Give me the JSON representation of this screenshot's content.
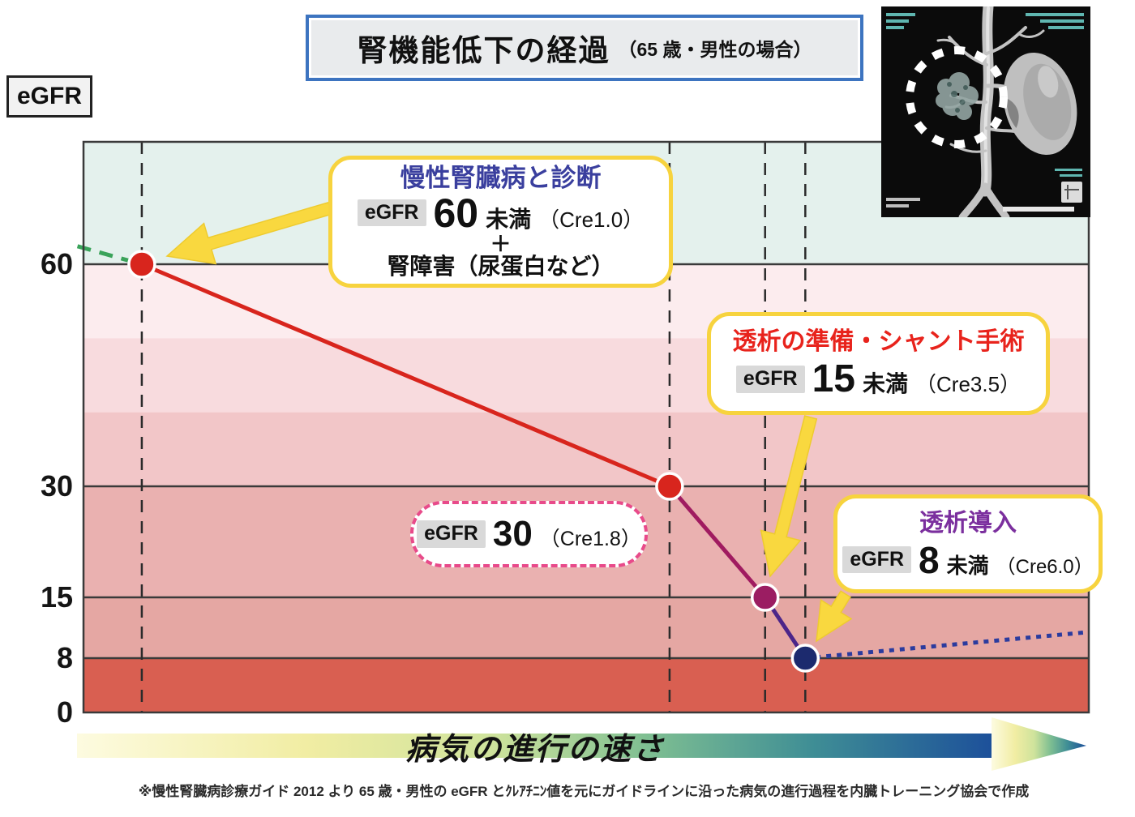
{
  "header": {
    "title": "腎機能低下の経過",
    "subtitle": "（65 歳・男性の場合）"
  },
  "y_axis_label": "eGFR",
  "egfr_chip": "eGFR",
  "callouts": {
    "diagnosis": {
      "title": "慢性腎臓病と診断",
      "value": "60",
      "suffix": "未満",
      "cre": "（Cre1.0）",
      "plus": "＋",
      "note": "腎障害（尿蛋白など）"
    },
    "egfr30": {
      "value": "30",
      "cre": "（Cre1.8）"
    },
    "dialysis_prep": {
      "title": "透析の準備・シャント手術",
      "value": "15",
      "suffix": "未満",
      "cre": "（Cre3.5）"
    },
    "dialysis_start": {
      "title": "透析導入",
      "value": "8",
      "suffix": "未満",
      "cre": "（Cre6.0）"
    }
  },
  "x_arrow_label": "病気の進行の速さ",
  "footnote": "※慢性腎臓病診療ガイド 2012 より 65 歳・男性の eGFR とｸﾚｱﾁﾆﾝ値を元にガイドラインに沿った病気の進行過程を内臓トレーニング協会で作成",
  "colors": {
    "title_border": "#3d74c0",
    "callout_border": "#f7d33e",
    "callout_arrow": "#f9d83f",
    "grid_line": "#3a3a3a",
    "diagnosis_title": "#3a3f9e",
    "prep_title": "#e8231c",
    "start_title": "#7b2f9e",
    "egfr30_border": "#e84a8a"
  },
  "chart_data": {
    "type": "line",
    "title": "腎機能低下の経過（65 歳・男性の場合）",
    "ylabel": "eGFR",
    "xlabel": "病気の進行の速さ（時間軸・目盛りなし）",
    "ylim": [
      0,
      77
    ],
    "y_ticks": [
      60,
      30,
      15,
      8,
      0
    ],
    "gridlines_egfr": [
      60,
      30,
      15,
      8
    ],
    "legend": "none",
    "points": [
      {
        "x_frac": 0.058,
        "egfr": 60,
        "cre": 1.0,
        "event": "慢性腎臓病と診断",
        "color": "#d8251d"
      },
      {
        "x_frac": 0.583,
        "egfr": 30,
        "cre": 1.8,
        "event": "eGFR 30（Cre1.8）",
        "color": "#d8251d"
      },
      {
        "x_frac": 0.678,
        "egfr": 15,
        "cre": 3.5,
        "event": "透析の準備・シャント手術",
        "color": "#9b1d62"
      },
      {
        "x_frac": 0.718,
        "egfr": 8,
        "cre": 6.0,
        "event": "透析導入",
        "color": "#1c2a6e"
      }
    ],
    "segments": [
      {
        "from": [
          -0.006,
          62.5
        ],
        "to": [
          0.058,
          60
        ],
        "style": "dashed",
        "color": "#3aa35a"
      },
      {
        "from": [
          0.058,
          60
        ],
        "to": [
          0.583,
          30
        ],
        "style": "solid",
        "color": "#d8251d"
      },
      {
        "from": [
          0.583,
          30
        ],
        "to": [
          0.678,
          15
        ],
        "style": "solid",
        "color": "#a01b60"
      },
      {
        "from": [
          0.678,
          15
        ],
        "to": [
          0.718,
          8
        ],
        "style": "solid",
        "color": "#4b2589"
      },
      {
        "from": [
          0.718,
          8
        ],
        "to": [
          1.0,
          11
        ],
        "style": "dotted",
        "color": "#2b3b9e"
      }
    ],
    "bands": [
      {
        "from": 77,
        "to": 60,
        "color": "#e4f1ed"
      },
      {
        "from": 60,
        "to": 50,
        "color": "#fcecee"
      },
      {
        "from": 50,
        "to": 40,
        "color": "#f8dbde"
      },
      {
        "from": 40,
        "to": 30,
        "color": "#f2c6c8"
      },
      {
        "from": 30,
        "to": 15,
        "color": "#eab1b0"
      },
      {
        "from": 15,
        "to": 8,
        "color": "#e5a7a3"
      },
      {
        "from": 8,
        "to": 0,
        "color": "#d95f51"
      }
    ]
  }
}
